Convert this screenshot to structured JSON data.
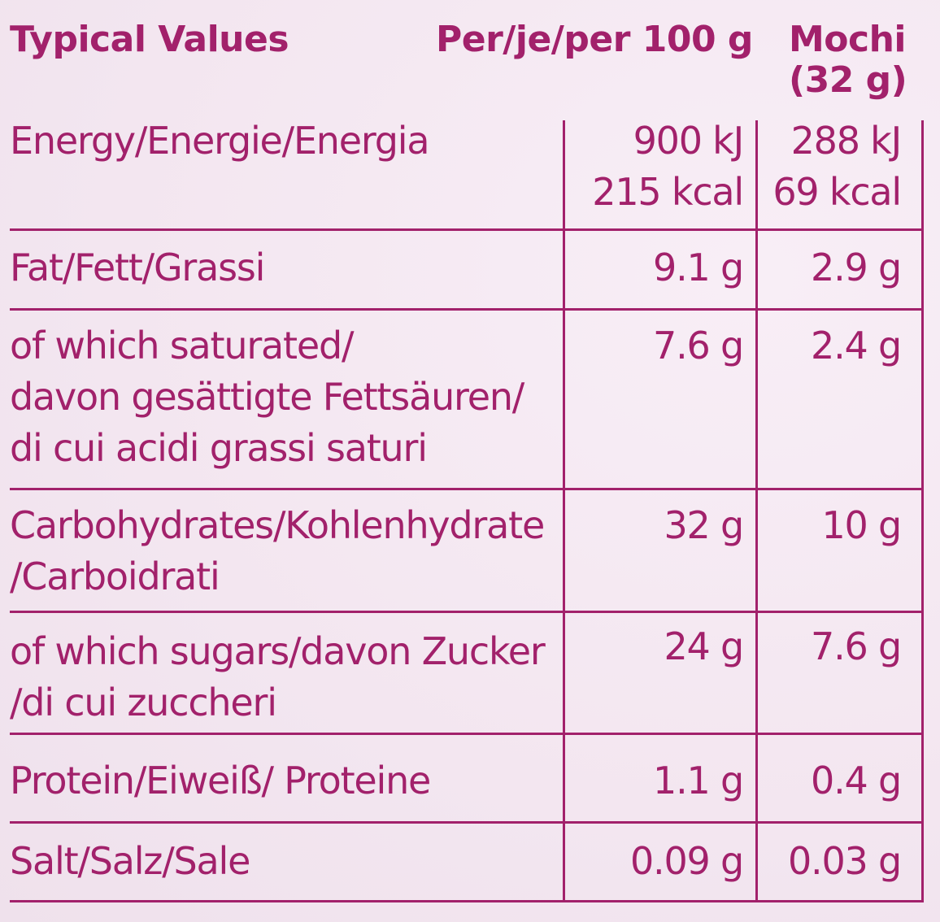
{
  "header": {
    "label": "Typical Values",
    "per_100g": "Per/je/per 100 g",
    "per_portion_line1": "Mochi",
    "per_portion_line2": "(32 g)"
  },
  "rows": [
    {
      "label_lines": [
        "Energy/Energie/Energia"
      ],
      "per_100g_lines": [
        "900 kJ",
        "215 kcal"
      ],
      "per_portion_lines": [
        "288 kJ",
        "69 kcal"
      ]
    },
    {
      "label_lines": [
        "Fat/Fett/Grassi"
      ],
      "per_100g_lines": [
        "9.1 g"
      ],
      "per_portion_lines": [
        "2.9 g"
      ]
    },
    {
      "label_lines": [
        "of which saturated/",
        "davon gesättigte Fettsäuren/",
        "di cui acidi grassi saturi"
      ],
      "per_100g_lines": [
        "7.6 g"
      ],
      "per_portion_lines": [
        "2.4 g"
      ]
    },
    {
      "label_lines": [
        "Carbohydrates/Kohlenhydrate",
        "/Carboidrati"
      ],
      "per_100g_lines": [
        "32 g"
      ],
      "per_portion_lines": [
        "10 g"
      ]
    },
    {
      "label_lines": [
        "of which sugars/davon Zucker",
        "/di cui zuccheri"
      ],
      "per_100g_lines": [
        "24 g"
      ],
      "per_portion_lines": [
        "7.6 g"
      ]
    },
    {
      "label_lines": [
        "Protein/Eiweiß/ Proteine"
      ],
      "per_100g_lines": [
        "1.1 g"
      ],
      "per_portion_lines": [
        "0.4 g"
      ]
    },
    {
      "label_lines": [
        "Salt/Salz/Sale"
      ],
      "per_100g_lines": [
        "0.09 g"
      ],
      "per_portion_lines": [
        "0.03 g"
      ]
    }
  ]
}
